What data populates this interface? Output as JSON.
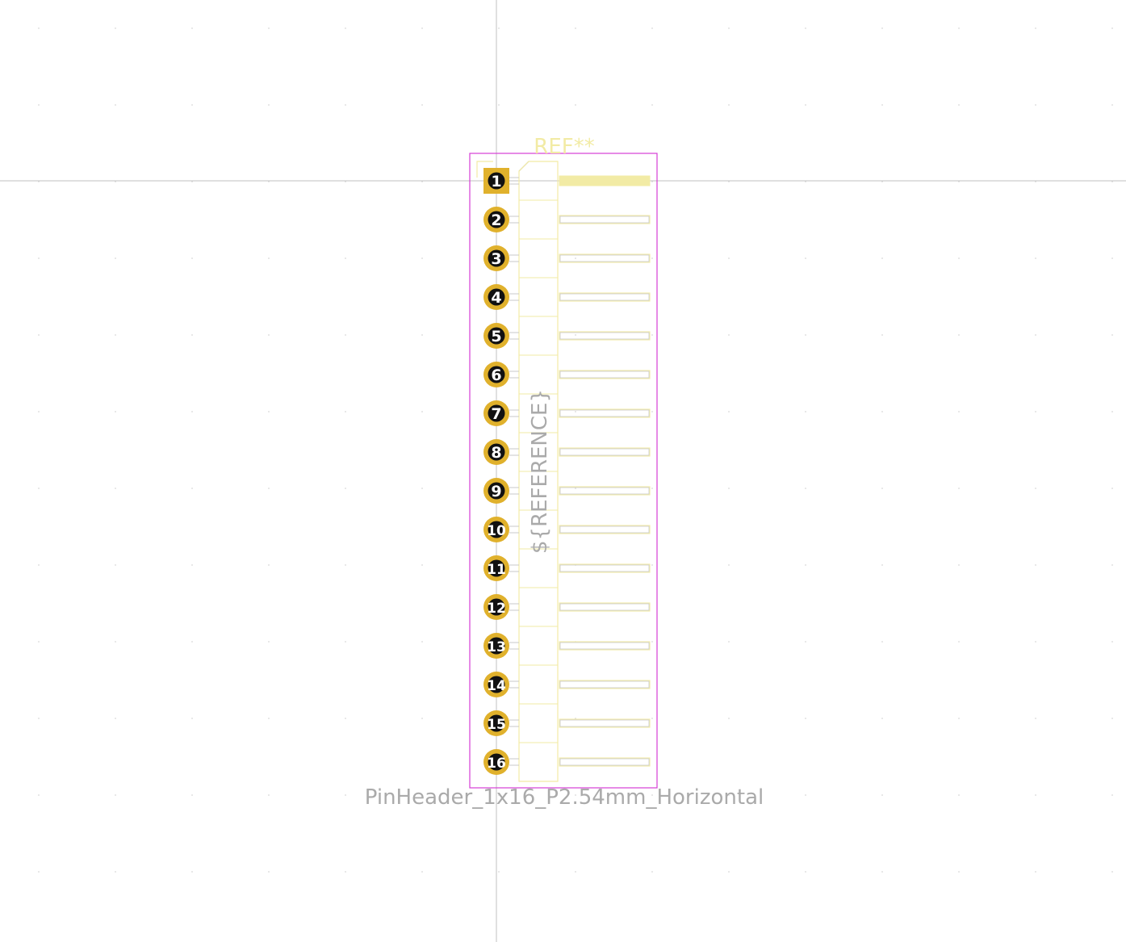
{
  "footprint": {
    "ref_label": "REF**",
    "value_label": "PinHeader_1x16_P2.54mm_Horizontal",
    "fab_reference_label": "${REFERENCE}",
    "pin_count": 16,
    "pins": [
      {
        "number": "1",
        "shape": "square"
      },
      {
        "number": "2",
        "shape": "round"
      },
      {
        "number": "3",
        "shape": "round"
      },
      {
        "number": "4",
        "shape": "round"
      },
      {
        "number": "5",
        "shape": "round"
      },
      {
        "number": "6",
        "shape": "round"
      },
      {
        "number": "7",
        "shape": "round"
      },
      {
        "number": "8",
        "shape": "round"
      },
      {
        "number": "9",
        "shape": "round"
      },
      {
        "number": "10",
        "shape": "round"
      },
      {
        "number": "11",
        "shape": "round"
      },
      {
        "number": "12",
        "shape": "round"
      },
      {
        "number": "13",
        "shape": "round"
      },
      {
        "number": "14",
        "shape": "round"
      },
      {
        "number": "15",
        "shape": "round"
      },
      {
        "number": "16",
        "shape": "round"
      }
    ]
  },
  "colors": {
    "pad": "#e0b12c",
    "drill": "#111111",
    "silkscreen": "#f2eba5",
    "fab_outline": "#c8c8c8",
    "courtyard": "#d63ed6",
    "ref_text": "#f2eba5",
    "value_text": "#aaaaaa",
    "crosshair": "#c0c0c0",
    "grid_dot": "#d7d7d7"
  }
}
